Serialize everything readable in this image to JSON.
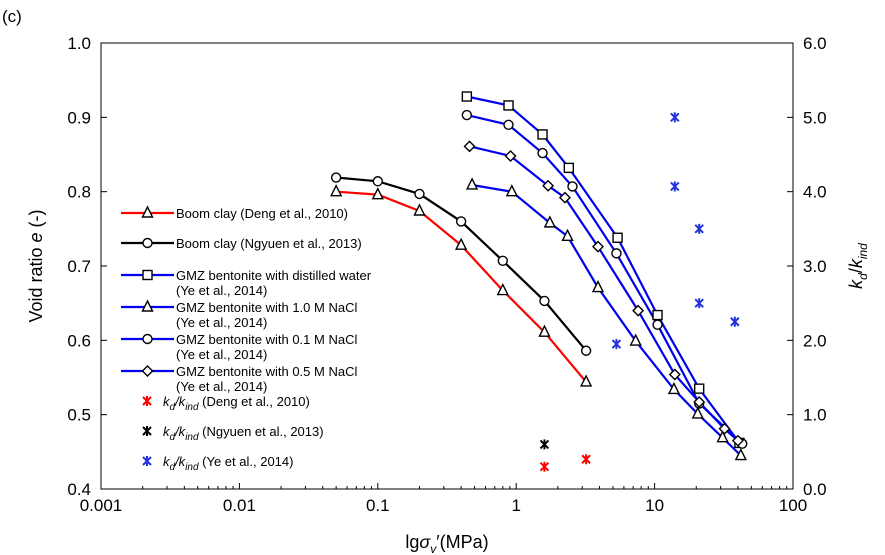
{
  "chart_data": {
    "type": "line",
    "panel_label": "(c)",
    "xlabel": "lgσv′(MPa)",
    "ylabel_left": "Void ratio e (-)",
    "ylabel_right": "kd/kind",
    "xscale": "log",
    "xlim": [
      0.001,
      100
    ],
    "ylim_left": [
      0.4,
      1.0
    ],
    "ylim_right": [
      0.0,
      6.0
    ],
    "x_ticks": [
      "0.001",
      "0.01",
      "0.1",
      "1",
      "10",
      "100"
    ],
    "y_ticks_left": [
      "0.4",
      "0.5",
      "0.6",
      "0.7",
      "0.8",
      "0.9",
      "1.0"
    ],
    "y_ticks_right": [
      "0.0",
      "1.0",
      "2.0",
      "3.0",
      "4.0",
      "5.0",
      "6.0"
    ],
    "grid": false,
    "legend_position": "left",
    "series": [
      {
        "name": "Boom clay (Deng et al., 2010)",
        "axis": "left",
        "color": "#ff0000",
        "marker": "triangle",
        "x": [
          0.05,
          0.1,
          0.2,
          0.4,
          0.8,
          1.6,
          3.2
        ],
        "y": [
          0.8,
          0.796,
          0.774,
          0.728,
          0.667,
          0.611,
          0.544
        ]
      },
      {
        "name": "Boom clay (Ngyuen et al., 2013)",
        "axis": "left",
        "color": "#000000",
        "marker": "circle",
        "x": [
          0.05,
          0.1,
          0.2,
          0.4,
          0.8,
          1.6,
          3.2
        ],
        "y": [
          0.819,
          0.814,
          0.797,
          0.76,
          0.707,
          0.653,
          0.586
        ]
      },
      {
        "name": "GMZ bentonite with distilled water",
        "name_line2": "(Ye et al., 2014)",
        "axis": "left",
        "color": "#0000ee",
        "marker": "square",
        "x": [
          0.44,
          0.88,
          1.55,
          2.4,
          5.4,
          10.5,
          21,
          41
        ],
        "y": [
          0.928,
          0.916,
          0.877,
          0.832,
          0.738,
          0.634,
          0.535,
          0.462
        ]
      },
      {
        "name": "GMZ bentonite with 1.0 M NaCl",
        "name_line2": "(Ye et al., 2014)",
        "axis": "left",
        "color": "#0000ee",
        "marker": "triangle",
        "x": [
          0.48,
          0.93,
          1.75,
          2.35,
          3.9,
          7.3,
          13.8,
          20.5,
          31,
          42
        ],
        "y": [
          0.809,
          0.8,
          0.758,
          0.74,
          0.671,
          0.599,
          0.534,
          0.501,
          0.469,
          0.445
        ]
      },
      {
        "name": "GMZ bentonite with 0.1 M NaCl",
        "name_line2": "(Ye et al., 2014)",
        "axis": "left",
        "color": "#0000ee",
        "marker": "circle",
        "x": [
          0.44,
          0.88,
          1.55,
          2.55,
          5.3,
          10.5,
          21,
          43
        ],
        "y": [
          0.903,
          0.89,
          0.852,
          0.807,
          0.717,
          0.621,
          0.515,
          0.461
        ]
      },
      {
        "name": "GMZ bentonite with 0.5 M NaCl",
        "name_line2": "(Ye et al., 2014)",
        "axis": "left",
        "color": "#0000ee",
        "marker": "diamond",
        "x": [
          0.46,
          0.91,
          1.7,
          2.25,
          3.9,
          7.6,
          14,
          21,
          32,
          40
        ],
        "y": [
          0.861,
          0.848,
          0.808,
          0.792,
          0.726,
          0.64,
          0.554,
          0.517,
          0.481,
          0.465
        ]
      }
    ],
    "ratio_series": [
      {
        "name_main": "k",
        "name_sub1": "d",
        "name_mid": "/k",
        "name_sub2": "ind",
        "name_suffix": " (Deng et al., 2010)",
        "axis": "right",
        "color": "#ff0000",
        "marker": "asterisk",
        "x": [
          1.6,
          3.2
        ],
        "y": [
          0.3,
          0.4
        ]
      },
      {
        "name_main": "k",
        "name_sub1": "d",
        "name_mid": "/k",
        "name_sub2": "ind",
        "name_suffix": " (Ngyuen et al., 2013)",
        "axis": "right",
        "color": "#000000",
        "marker": "asterisk",
        "x": [
          1.6
        ],
        "y": [
          0.6
        ]
      },
      {
        "name_main": "k",
        "name_sub1": "d",
        "name_mid": "/k",
        "name_sub2": "ind",
        "name_suffix": " (Ye et al., 2014)",
        "axis": "right",
        "color": "#2233dd",
        "marker": "asterisk",
        "x": [
          5.3,
          14,
          14,
          21,
          21,
          38
        ],
        "y": [
          1.95,
          5.0,
          4.07,
          3.5,
          2.5,
          2.25
        ]
      }
    ]
  }
}
